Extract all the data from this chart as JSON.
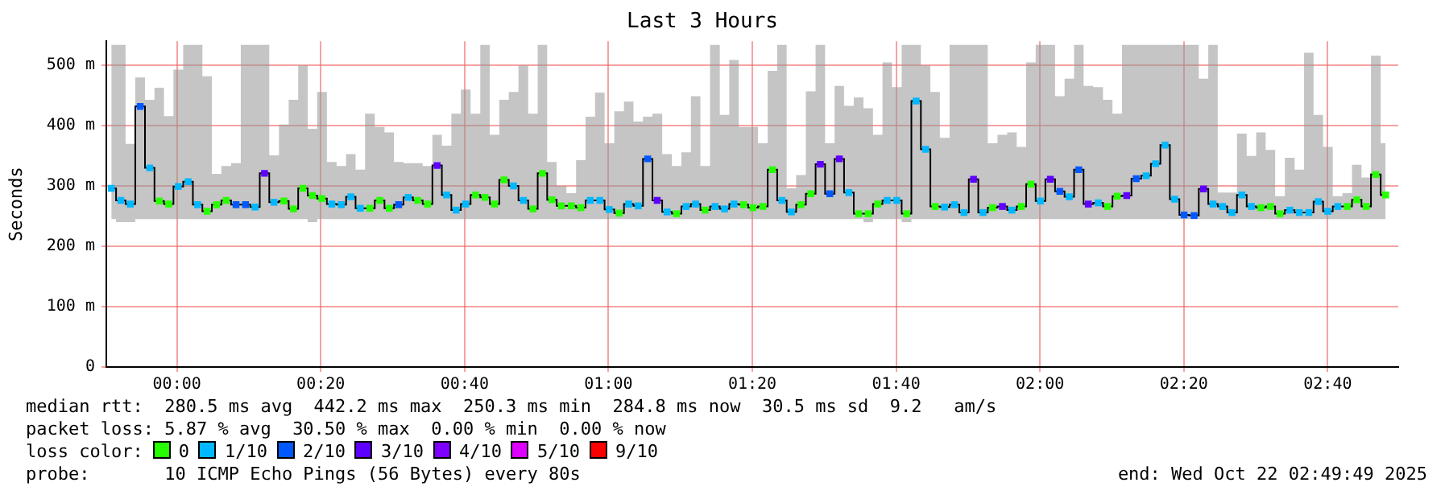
{
  "chart_data": {
    "type": "step",
    "title": "Last 3 Hours",
    "ylabel": "Seconds",
    "legend_title": "loss color:",
    "legend": "bottom",
    "grid": true,
    "marker": "square",
    "xlim": [
      -0.1636,
      2.8303
    ],
    "xticks": [
      {
        "value": 0,
        "label": "00:00"
      },
      {
        "value": 0.3333,
        "label": "00:20"
      },
      {
        "value": 0.6667,
        "label": "00:40"
      },
      {
        "value": 1,
        "label": "01:00"
      },
      {
        "value": 1.3333,
        "label": "01:20"
      },
      {
        "value": 1.6667,
        "label": "01:40"
      },
      {
        "value": 2,
        "label": "02:00"
      },
      {
        "value": 2.3333,
        "label": "02:20"
      },
      {
        "value": 2.6667,
        "label": "02:40"
      }
    ],
    "ylim": [
      0,
      540
    ],
    "yticks": [
      0,
      {
        "value": 100,
        "label": "100 m"
      },
      {
        "value": 200,
        "label": "200 m"
      },
      {
        "value": 300,
        "label": "300 m"
      },
      {
        "value": 400,
        "label": "400 m"
      },
      {
        "value": 500,
        "label": "500 m"
      }
    ],
    "annotations": [
      "median rtt:  280.5 ms avg  442.2 ms max  250.3 ms min  284.8 ms now  30.5 ms sd  9.2   am/s",
      "packet loss: 5.87 % avg  30.50 % max  0.00 % min  0.00 % now",
      "probe:       10 ICMP Echo Pings (56 Bytes) every 80s",
      "end: Wed Oct 22 02:49:49 2025"
    ],
    "x": [
      -0.152,
      -0.13,
      -0.108,
      -0.085,
      -0.063,
      -0.041,
      -0.019,
      0.003,
      0.026,
      0.048,
      0.07,
      0.092,
      0.114,
      0.137,
      0.159,
      0.181,
      0.203,
      0.225,
      0.248,
      0.27,
      0.292,
      0.314,
      0.336,
      0.359,
      0.381,
      0.403,
      0.425,
      0.447,
      0.47,
      0.492,
      0.514,
      0.536,
      0.558,
      0.581,
      0.603,
      0.625,
      0.647,
      0.669,
      0.692,
      0.714,
      0.736,
      0.758,
      0.78,
      0.803,
      0.825,
      0.847,
      0.869,
      0.891,
      0.914,
      0.936,
      0.958,
      0.98,
      1.002,
      1.025,
      1.047,
      1.069,
      1.091,
      1.113,
      1.136,
      1.158,
      1.18,
      1.202,
      1.224,
      1.247,
      1.269,
      1.291,
      1.313,
      1.335,
      1.358,
      1.38,
      1.402,
      1.424,
      1.446,
      1.469,
      1.491,
      1.513,
      1.535,
      1.557,
      1.58,
      1.602,
      1.624,
      1.646,
      1.668,
      1.691,
      1.713,
      1.735,
      1.757,
      1.779,
      1.802,
      1.824,
      1.846,
      1.868,
      1.89,
      1.913,
      1.935,
      1.957,
      1.979,
      2.001,
      2.024,
      2.046,
      2.068,
      2.09,
      2.112,
      2.135,
      2.157,
      2.179,
      2.201,
      2.223,
      2.246,
      2.268,
      2.29,
      2.312,
      2.334,
      2.357,
      2.379,
      2.401,
      2.423,
      2.445,
      2.468,
      2.49,
      2.512,
      2.534,
      2.556,
      2.579,
      2.601,
      2.623,
      2.645,
      2.667,
      2.69,
      2.712,
      2.734,
      2.756,
      2.778,
      2.801
    ],
    "series": [
      {
        "color": "#000000",
        "marker": "none",
        "values": [
          296,
          276,
          270,
          432,
          330,
          275,
          270,
          299,
          307,
          269,
          258,
          269,
          276,
          269,
          269,
          265,
          321,
          273,
          275,
          262,
          296,
          284,
          279,
          270,
          269,
          282,
          263,
          263,
          276,
          263,
          269,
          281,
          276,
          270,
          334,
          285,
          260,
          270,
          285,
          281,
          270,
          310,
          300,
          276,
          262,
          321,
          277,
          267,
          267,
          264,
          276,
          276,
          261,
          255,
          270,
          267,
          345,
          276,
          257,
          254,
          266,
          270,
          260,
          266,
          262,
          270,
          269,
          264,
          266,
          327,
          276,
          257,
          269,
          287,
          336,
          287,
          345,
          289,
          254,
          254,
          270,
          276,
          276,
          254,
          441,
          361,
          266,
          265,
          269,
          256,
          311,
          256,
          264,
          266,
          260,
          266,
          303,
          275,
          311,
          291,
          282,
          327,
          270,
          272,
          266,
          283,
          284,
          312,
          317,
          337,
          368,
          278,
          252,
          251,
          295,
          270,
          266,
          256,
          285,
          266,
          264,
          266,
          254,
          260,
          256,
          256,
          274,
          258,
          266,
          266,
          277,
          266,
          319,
          285
        ],
        "upper": [
          534,
          534,
          370,
          480,
          443,
          463,
          416,
          493,
          534,
          534,
          482,
          320,
          333,
          338,
          534,
          534,
          534,
          351,
          402,
          443,
          500,
          395,
          456,
          340,
          333,
          353,
          327,
          420,
          398,
          389,
          340,
          338,
          338,
          333,
          385,
          367,
          420,
          460,
          420,
          534,
          385,
          443,
          456,
          500,
          420,
          534,
          340,
          300,
          288,
          343,
          415,
          455,
          371,
          424,
          440,
          407,
          415,
          420,
          353,
          333,
          356,
          449,
          333,
          534,
          418,
          509,
          398,
          398,
          371,
          491,
          534,
          296,
          318,
          457,
          534,
          371,
          466,
          433,
          447,
          429,
          385,
          505,
          464,
          534,
          534,
          500,
          456,
          380,
          534,
          534,
          534,
          534,
          371,
          385,
          389,
          365,
          505,
          534,
          534,
          449,
          478,
          534,
          466,
          464,
          443,
          420,
          534,
          534,
          534,
          534,
          534,
          534,
          534,
          534,
          478,
          534,
          289,
          289,
          387,
          350,
          389,
          360,
          283,
          347,
          327,
          521,
          418,
          365,
          283,
          288,
          335,
          314,
          516,
          371
        ],
        "lower": [
          245,
          240,
          240,
          245,
          245,
          245,
          245,
          245,
          245,
          245,
          245,
          245,
          245,
          245,
          245,
          245,
          245,
          245,
          245,
          245,
          245,
          240,
          245,
          245,
          245,
          245,
          245,
          245,
          245,
          245,
          245,
          245,
          245,
          245,
          245,
          245,
          245,
          245,
          245,
          245,
          245,
          245,
          245,
          245,
          245,
          245,
          245,
          245,
          245,
          245,
          245,
          245,
          245,
          245,
          245,
          245,
          245,
          245,
          245,
          245,
          245,
          245,
          245,
          245,
          245,
          245,
          245,
          245,
          245,
          245,
          245,
          245,
          245,
          245,
          245,
          245,
          245,
          245,
          245,
          240,
          245,
          245,
          245,
          240,
          245,
          245,
          245,
          245,
          245,
          245,
          245,
          245,
          245,
          245,
          245,
          245,
          245,
          245,
          245,
          245,
          245,
          245,
          245,
          245,
          245,
          245,
          245,
          245,
          245,
          245,
          245,
          245,
          245,
          245,
          245,
          245,
          245,
          245,
          245,
          245,
          245,
          245,
          245,
          245,
          245,
          245,
          245,
          245,
          245,
          245,
          245,
          245,
          245,
          245
        ]
      },
      {
        "type": "scatter",
        "name": "0",
        "color": "#26ff00",
        "x": [
          -0.041,
          -0.019,
          0.07,
          0.092,
          0.114,
          0.248,
          0.27,
          0.292,
          0.314,
          0.336,
          0.447,
          0.47,
          0.492,
          0.558,
          0.581,
          0.692,
          0.714,
          0.736,
          0.758,
          0.825,
          0.847,
          0.869,
          0.891,
          0.914,
          0.936,
          1.025,
          1.158,
          1.224,
          1.313,
          1.335,
          1.358,
          1.38,
          1.446,
          1.469,
          1.58,
          1.602,
          1.624,
          1.691,
          1.757,
          1.89,
          1.957,
          1.979,
          2.157,
          2.179,
          2.512,
          2.534,
          2.556,
          2.712,
          2.734,
          2.756,
          2.778,
          2.801
        ],
        "values": [
          275,
          270,
          258,
          269,
          276,
          275,
          262,
          296,
          284,
          279,
          263,
          276,
          263,
          276,
          270,
          285,
          281,
          270,
          310,
          262,
          321,
          277,
          267,
          267,
          264,
          255,
          254,
          260,
          269,
          264,
          266,
          327,
          269,
          287,
          254,
          254,
          270,
          254,
          266,
          264,
          266,
          303,
          266,
          283,
          264,
          266,
          254,
          266,
          277,
          266,
          319,
          285
        ]
      },
      {
        "type": "scatter",
        "name": "1/10",
        "color": "#00b8ff",
        "x": [
          -0.152,
          -0.13,
          -0.108,
          -0.063,
          0.003,
          0.026,
          0.048,
          0.181,
          0.225,
          0.359,
          0.381,
          0.403,
          0.425,
          0.536,
          0.625,
          0.647,
          0.669,
          0.78,
          0.803,
          0.958,
          0.98,
          1.002,
          1.047,
          1.069,
          1.136,
          1.18,
          1.202,
          1.247,
          1.269,
          1.291,
          1.402,
          1.424,
          1.557,
          1.646,
          1.668,
          1.713,
          1.735,
          1.779,
          1.802,
          1.824,
          1.868,
          1.935,
          2.001,
          2.068,
          2.135,
          2.246,
          2.268,
          2.29,
          2.312,
          2.401,
          2.423,
          2.445,
          2.468,
          2.49,
          2.579,
          2.601,
          2.623,
          2.645,
          2.667,
          2.69
        ],
        "values": [
          296,
          276,
          270,
          330,
          299,
          307,
          269,
          265,
          273,
          270,
          269,
          282,
          263,
          281,
          285,
          260,
          270,
          300,
          276,
          276,
          276,
          261,
          270,
          267,
          257,
          266,
          270,
          266,
          262,
          270,
          276,
          257,
          289,
          276,
          276,
          441,
          361,
          265,
          269,
          256,
          256,
          260,
          275,
          282,
          272,
          317,
          337,
          368,
          278,
          270,
          266,
          256,
          285,
          266,
          260,
          256,
          256,
          274,
          258,
          266
        ]
      },
      {
        "type": "scatter",
        "name": "2/10",
        "color": "#0059ff",
        "x": [
          -0.085,
          0.137,
          0.159,
          0.514,
          1.091,
          1.513,
          2.046,
          2.09,
          2.223,
          2.334,
          2.357
        ],
        "values": [
          432,
          269,
          269,
          269,
          345,
          287,
          291,
          327,
          312,
          252,
          251
        ]
      },
      {
        "type": "scatter",
        "name": "3/10",
        "color": "#5e00ff",
        "x": [
          0.203,
          0.603,
          1.113,
          1.491,
          1.535,
          1.846,
          1.913,
          2.024,
          2.112,
          2.201,
          2.379
        ],
        "values": [
          321,
          334,
          276,
          336,
          345,
          311,
          266,
          311,
          270,
          284,
          295
        ]
      },
      {
        "type": "scatter",
        "name": "4/10",
        "color": "#7e00ff",
        "values": [
          null,
          null,
          null,
          null,
          null,
          null,
          null,
          null,
          null,
          null,
          null,
          null,
          null,
          null,
          null,
          null,
          null,
          null,
          null,
          null,
          null,
          null,
          null,
          null,
          null,
          null,
          null,
          null,
          null,
          null,
          null,
          null,
          null,
          null,
          null,
          null,
          null,
          null,
          null,
          null,
          null,
          null,
          null,
          null,
          null,
          null,
          null,
          null,
          null,
          null,
          null,
          null,
          null,
          null,
          null,
          null,
          null,
          null,
          null,
          null,
          null,
          null,
          null,
          null,
          null,
          null,
          null,
          null,
          null,
          null,
          null,
          null,
          null,
          null,
          null,
          null,
          null,
          null,
          null,
          null,
          null,
          null,
          null,
          null,
          null,
          null,
          null,
          null,
          null,
          null,
          null,
          null,
          null,
          null,
          null,
          null,
          null,
          null,
          null,
          null,
          null,
          null,
          null,
          null,
          null,
          null,
          null,
          null,
          null,
          null,
          null,
          null,
          null,
          null,
          null,
          null,
          null,
          null,
          null,
          null,
          null,
          null,
          null,
          null,
          null,
          null,
          null,
          null,
          null,
          null,
          null,
          null,
          null,
          null
        ]
      },
      {
        "type": "scatter",
        "name": "5/10",
        "color": "#dd00ff",
        "values": [
          null,
          null,
          null,
          null,
          null,
          null,
          null,
          null,
          null,
          null,
          null,
          null,
          null,
          null,
          null,
          null,
          null,
          null,
          null,
          null,
          null,
          null,
          null,
          null,
          null,
          null,
          null,
          null,
          null,
          null,
          null,
          null,
          null,
          null,
          null,
          null,
          null,
          null,
          null,
          null,
          null,
          null,
          null,
          null,
          null,
          null,
          null,
          null,
          null,
          null,
          null,
          null,
          null,
          null,
          null,
          null,
          null,
          null,
          null,
          null,
          null,
          null,
          null,
          null,
          null,
          null,
          null,
          null,
          null,
          null,
          null,
          null,
          null,
          null,
          null,
          null,
          null,
          null,
          null,
          null,
          null,
          null,
          null,
          null,
          null,
          null,
          null,
          null,
          null,
          null,
          null,
          null,
          null,
          null,
          null,
          null,
          null,
          null,
          null,
          null,
          null,
          null,
          null,
          null,
          null,
          null,
          null,
          null,
          null,
          null,
          null,
          null,
          null,
          null,
          null,
          null,
          null,
          null,
          null,
          null,
          null,
          null,
          null,
          null,
          null,
          null,
          null,
          null,
          null,
          null,
          null,
          null,
          null,
          null
        ]
      },
      {
        "type": "scatter",
        "name": "9/10",
        "color": "#ff0000",
        "values": [
          null,
          null,
          null,
          null,
          null,
          null,
          null,
          null,
          null,
          null,
          null,
          null,
          null,
          null,
          null,
          null,
          null,
          null,
          null,
          null,
          null,
          null,
          null,
          null,
          null,
          null,
          null,
          null,
          null,
          null,
          null,
          null,
          null,
          null,
          null,
          null,
          null,
          null,
          null,
          null,
          null,
          null,
          null,
          null,
          null,
          null,
          null,
          null,
          null,
          null,
          null,
          null,
          null,
          null,
          null,
          null,
          null,
          null,
          null,
          null,
          null,
          null,
          null,
          null,
          null,
          null,
          null,
          null,
          null,
          null,
          null,
          null,
          null,
          null,
          null,
          null,
          null,
          null,
          null,
          null,
          null,
          null,
          null,
          null,
          null,
          null,
          null,
          null,
          null,
          null,
          null,
          null,
          null,
          null,
          null,
          null,
          null,
          null,
          null,
          null,
          null,
          null,
          null,
          null,
          null,
          null,
          null,
          null,
          null,
          null,
          null,
          null,
          null,
          null,
          null,
          null,
          null,
          null,
          null,
          null,
          null,
          null,
          null,
          null,
          null,
          null,
          null,
          null,
          null,
          null,
          null,
          null,
          null,
          null
        ]
      }
    ]
  }
}
